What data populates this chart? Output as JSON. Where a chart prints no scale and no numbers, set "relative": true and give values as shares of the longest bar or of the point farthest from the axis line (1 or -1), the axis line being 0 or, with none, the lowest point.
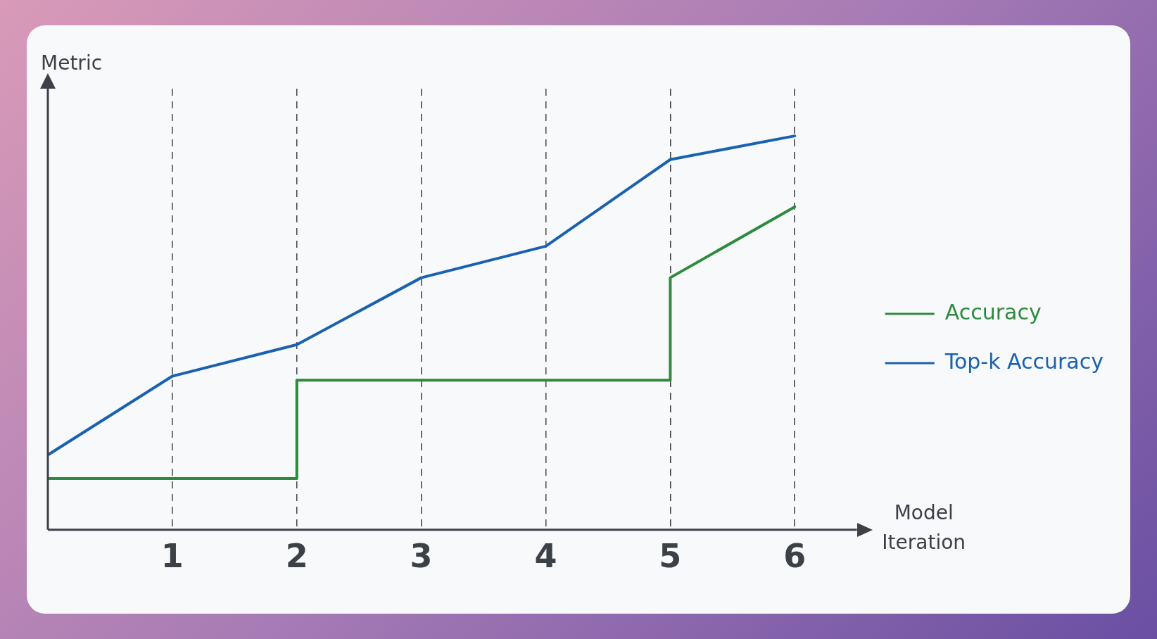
{
  "chart_data": {
    "type": "line",
    "xlabel": "Model Iteration",
    "ylabel": "Metric",
    "relative": true,
    "x": [
      0,
      1,
      2,
      3,
      4,
      5,
      6
    ],
    "series": [
      {
        "name": "Accuracy",
        "color": "#2e8b3e",
        "x": [
          0,
          2,
          2,
          5,
          5,
          6
        ],
        "values": [
          0.13,
          0.13,
          0.38,
          0.38,
          0.64,
          0.82
        ]
      },
      {
        "name": "Top-k Accuracy",
        "color": "#1a62b0",
        "values": [
          0.19,
          0.39,
          0.47,
          0.64,
          0.72,
          0.94,
          1.0
        ]
      }
    ],
    "xlim": [
      0,
      6.5
    ],
    "xticks": [
      1,
      2,
      3,
      4,
      5,
      6
    ],
    "grid": "x",
    "legend": "right",
    "tick_labels": "x",
    "marker": "none",
    "line_style": "solid"
  }
}
